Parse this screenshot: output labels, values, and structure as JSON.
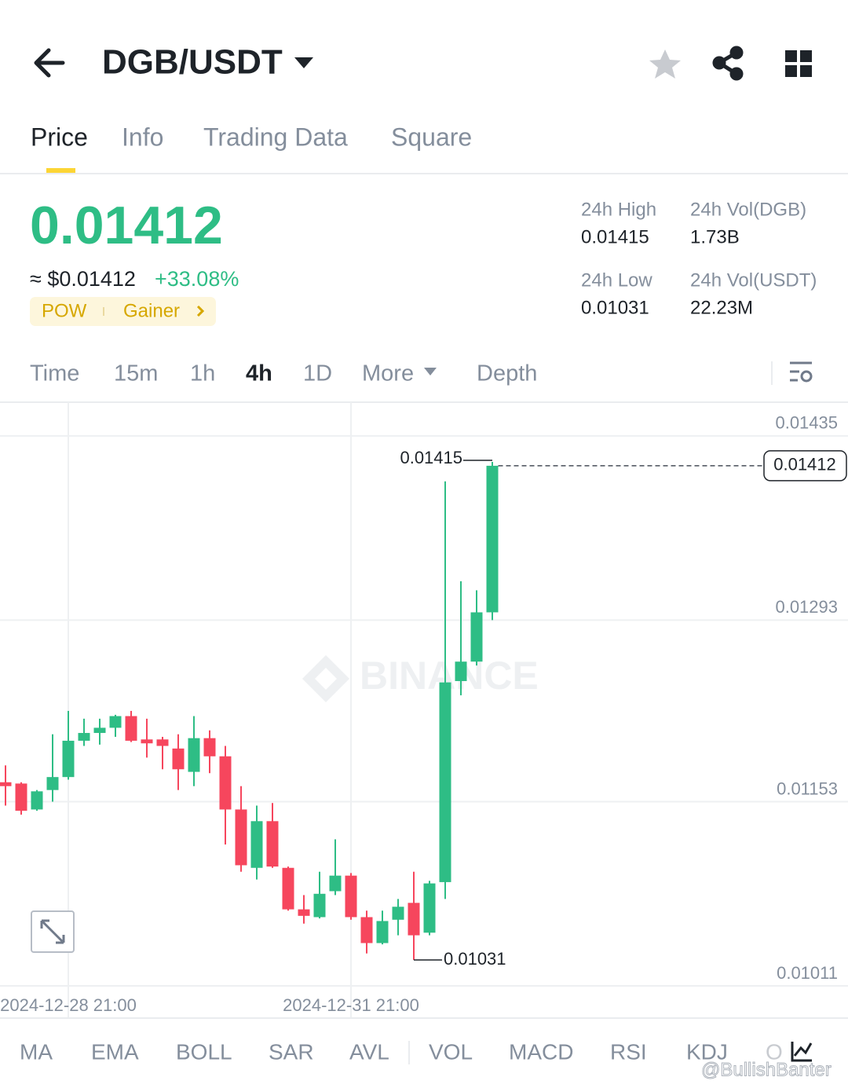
{
  "header": {
    "pair": "DGB/USDT"
  },
  "tabs": [
    "Price",
    "Info",
    "Trading Data",
    "Square"
  ],
  "price": {
    "last": "0.01412",
    "approx": "≈ $0.01412",
    "change": "+33.08%",
    "tags": [
      "POW",
      "Gainer"
    ]
  },
  "stats": [
    {
      "label": "24h High",
      "value": "0.01415"
    },
    {
      "label": "24h Vol(DGB)",
      "value": "1.73B"
    },
    {
      "label": "24h Low",
      "value": "0.01031"
    },
    {
      "label": "24h Vol(USDT)",
      "value": "22.23M"
    }
  ],
  "intervals": [
    "Time",
    "15m",
    "1h",
    "4h",
    "1D",
    "More",
    "Depth"
  ],
  "chart_data": {
    "type": "candlestick",
    "categories": [
      null,
      null,
      null,
      null,
      "2024-12-28 21:00",
      null,
      null,
      null,
      null,
      null,
      null,
      null,
      null,
      null,
      null,
      null,
      null,
      null,
      null,
      null,
      null,
      null,
      "2024-12-31 21:00",
      null,
      null,
      null,
      null,
      null,
      null,
      null,
      null,
      null
    ],
    "open": [
      0.01168,
      0.01167,
      0.01147,
      0.01162,
      0.01172,
      0.012,
      0.01206,
      0.0121,
      0.01219,
      0.01201,
      0.01201,
      0.01194,
      0.01176,
      0.01202,
      0.01188,
      0.01147,
      0.01102,
      0.01138,
      0.01102,
      0.0107,
      0.01064,
      0.01084,
      0.01096,
      0.01064,
      0.01044,
      0.01062,
      0.01075,
      0.01052,
      0.01091,
      0.01246,
      0.01261,
      0.01299
    ],
    "high": [
      0.01181,
      0.01168,
      0.01162,
      0.01205,
      0.01223,
      0.01217,
      0.01217,
      0.0122,
      0.01223,
      0.01217,
      0.01203,
      0.01205,
      0.01219,
      0.01208,
      0.01196,
      0.01165,
      0.0115,
      0.01152,
      0.01103,
      0.01081,
      0.01099,
      0.01124,
      0.01098,
      0.01069,
      0.01069,
      0.01078,
      0.01099,
      0.01092,
      0.014,
      0.01323,
      0.01316,
      0.01415
    ],
    "low": [
      0.0115,
      0.01143,
      0.01146,
      0.01153,
      0.0117,
      0.01196,
      0.01197,
      0.01203,
      0.01199,
      0.01187,
      0.01178,
      0.01162,
      0.01165,
      0.01175,
      0.0112,
      0.01099,
      0.01093,
      0.01102,
      0.01069,
      0.01059,
      0.01063,
      0.01081,
      0.01062,
      0.01036,
      0.01043,
      0.0105,
      0.01031,
      0.0105,
      0.01078,
      0.01235,
      0.01258,
      0.01293
    ],
    "close": [
      0.01165,
      0.01146,
      0.01161,
      0.01172,
      0.012,
      0.01206,
      0.0121,
      0.01219,
      0.012,
      0.01198,
      0.01196,
      0.01178,
      0.01202,
      0.01188,
      0.01147,
      0.01104,
      0.01138,
      0.01103,
      0.0107,
      0.01065,
      0.01082,
      0.01096,
      0.01064,
      0.01044,
      0.01061,
      0.01072,
      0.0105,
      0.0109,
      0.01245,
      0.01261,
      0.01299,
      0.01412
    ],
    "up_color": "#2ebd85",
    "down_color": "#f6465d",
    "ylim": [
      0.01011,
      0.01461
    ],
    "yticks": [
      0.01011,
      0.01153,
      0.01293,
      0.01435
    ],
    "grid": true
  },
  "indicators": [
    "MA",
    "EMA",
    "BOLL",
    "SAR",
    "AVL",
    "VOL",
    "MACD",
    "RSI",
    "KDJ",
    "O"
  ],
  "watermark": "BINANCE",
  "credit": "@BullishBanter"
}
